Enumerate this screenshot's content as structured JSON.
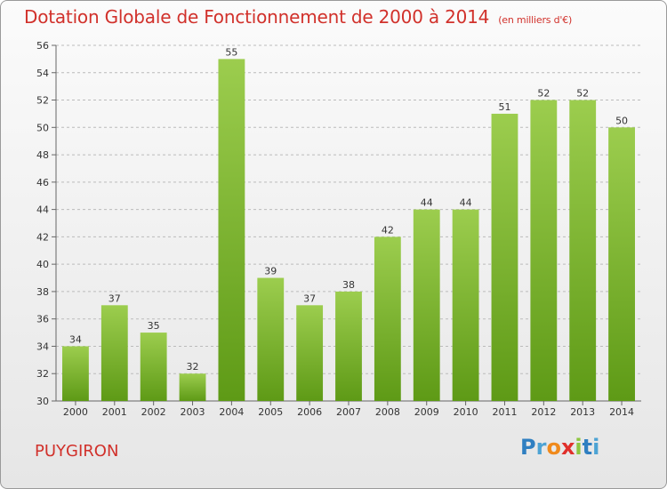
{
  "header": {
    "title": "Dotation Globale de Fonctionnement de 2000 à 2014",
    "subtitle": "(en milliers d'€)"
  },
  "commune": "PUYGIRON",
  "logo": {
    "letters": [
      "P",
      "r",
      "o",
      "x",
      "i",
      "t",
      "i"
    ],
    "colors": [
      "#2f7fc1",
      "#4da3d4",
      "#f08a1c",
      "#e0302b",
      "#8dc63f",
      "#2f7fc1",
      "#4da3d4"
    ]
  },
  "colors": {
    "bar_top": "#9ccd4e",
    "bar_bottom": "#5e9a16",
    "grid": "#bbbbbb",
    "accent": "#d1312b"
  },
  "chart_data": {
    "type": "bar",
    "categories": [
      "2000",
      "2001",
      "2002",
      "2003",
      "2004",
      "2005",
      "2006",
      "2007",
      "2008",
      "2009",
      "2010",
      "2011",
      "2012",
      "2013",
      "2014"
    ],
    "values": [
      34,
      37,
      35,
      32,
      55,
      39,
      37,
      38,
      42,
      44,
      44,
      51,
      52,
      52,
      50
    ],
    "title": "Dotation Globale de Fonctionnement de 2000 à 2014",
    "subtitle": "(en milliers d'€)",
    "ylim": [
      30,
      56
    ],
    "yticks": [
      30,
      32,
      34,
      36,
      38,
      40,
      42,
      44,
      46,
      48,
      50,
      52,
      54,
      56
    ],
    "grid": true,
    "legend": "none"
  }
}
